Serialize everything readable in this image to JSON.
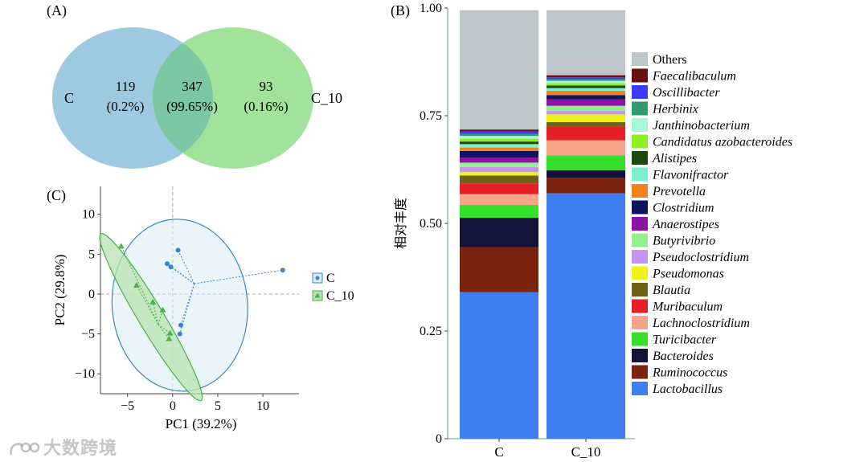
{
  "watermark": "大数跨境",
  "chart_data": [
    {
      "panel": "(A)",
      "type": "venn",
      "sets": [
        {
          "name": "C",
          "unique": "119",
          "unique_pct": "(0.2%)",
          "color": "#9ecae1"
        },
        {
          "name": "C_10",
          "unique": "93",
          "unique_pct": "(0.16%)",
          "color": "#a1e39b"
        }
      ],
      "overlap": {
        "value": "347",
        "pct": "(99.65%)",
        "color": "#7cc7a3"
      }
    },
    {
      "panel": "(B)",
      "type": "bar",
      "stacked": true,
      "ylabel": "相对丰度",
      "ylim": [
        0,
        1.0
      ],
      "yticks": [
        0,
        0.25,
        0.5,
        0.75,
        1.0
      ],
      "ytick_labels": [
        "0",
        "0.25",
        "0.50",
        "0.75",
        "1.00"
      ],
      "categories": [
        "C",
        "C_10"
      ],
      "series": [
        {
          "name": "Lactobacillus",
          "color": "#3d7ff0",
          "values": [
            0.34,
            0.57
          ]
        },
        {
          "name": "Ruminococcus",
          "color": "#7a2410",
          "values": [
            0.105,
            0.035
          ]
        },
        {
          "name": "Bacteroides",
          "color": "#14133a",
          "values": [
            0.068,
            0.018
          ]
        },
        {
          "name": "Turicibacter",
          "color": "#35e02c",
          "values": [
            0.03,
            0.035
          ]
        },
        {
          "name": "Lachnoclostridium",
          "color": "#f6a58a",
          "values": [
            0.025,
            0.035
          ]
        },
        {
          "name": "Muribaculum",
          "color": "#e41f26",
          "values": [
            0.025,
            0.032
          ]
        },
        {
          "name": "Blautia",
          "color": "#6b6216",
          "values": [
            0.018,
            0.01
          ]
        },
        {
          "name": "Pseudomonas",
          "color": "#f2f21a",
          "values": [
            0.008,
            0.018
          ]
        },
        {
          "name": "Pseudoclostridium",
          "color": "#c495e8",
          "values": [
            0.012,
            0.008
          ]
        },
        {
          "name": "Butyrivibrio",
          "color": "#93f08e",
          "values": [
            0.01,
            0.012
          ]
        },
        {
          "name": "Anaerostipes",
          "color": "#8e12a6",
          "values": [
            0.012,
            0.015
          ]
        },
        {
          "name": "Clostridium",
          "color": "#0e1560",
          "values": [
            0.015,
            0.01
          ]
        },
        {
          "name": "Prevotella",
          "color": "#f5821f",
          "values": [
            0.008,
            0.01
          ]
        },
        {
          "name": "Flavonifractor",
          "color": "#7df0cf",
          "values": [
            0.008,
            0.006
          ]
        },
        {
          "name": "Alistipes",
          "color": "#1e4a12",
          "values": [
            0.006,
            0.006
          ]
        },
        {
          "name": "Candidatus azobacteroides",
          "color": "#8ef023",
          "values": [
            0.007,
            0.006
          ]
        },
        {
          "name": "Janthinobacterium",
          "color": "#a8f5d8",
          "values": [
            0.006,
            0.005
          ]
        },
        {
          "name": "Herbinix",
          "color": "#2e9a6e",
          "values": [
            0.005,
            0.004
          ]
        },
        {
          "name": "Oscillibacter",
          "color": "#3b3bff",
          "values": [
            0.005,
            0.004
          ]
        },
        {
          "name": "Faecalibaculum",
          "color": "#6a0e0e",
          "values": [
            0.005,
            0.005
          ]
        },
        {
          "name": "Others",
          "color": "#bec5c8",
          "values": [
            0.277,
            0.151
          ]
        }
      ]
    },
    {
      "panel": "(C)",
      "type": "scatter",
      "xlabel": "PC1 (39.2%)",
      "ylabel": "PC2 (29.8%)",
      "xlim": [
        -8,
        14
      ],
      "ylim": [
        -12.5,
        13.5
      ],
      "xticks": [
        -5,
        0,
        5,
        10
      ],
      "yticks": [
        -10,
        -5,
        0,
        5,
        10
      ],
      "xtick_labels": [
        "−5",
        "0",
        "5",
        "10"
      ],
      "ytick_labels": [
        "−10",
        "−5",
        "0",
        "5",
        "10"
      ],
      "series": [
        {
          "name": "C",
          "marker": "circle",
          "color": "#3a86c8",
          "fill": "#d9ecf6",
          "ellipse": {
            "cx": 0.8,
            "cy": -1.4,
            "rx": 7.5,
            "ry": 10.8,
            "angle": -5
          },
          "centroid": [
            2.4,
            1.3
          ],
          "points": [
            [
              0.6,
              5.5
            ],
            [
              -0.6,
              3.8
            ],
            [
              -0.2,
              3.4
            ],
            [
              12.2,
              3.0
            ],
            [
              0.9,
              -3.9
            ],
            [
              0.8,
              -5.0
            ]
          ]
        },
        {
          "name": "C_10",
          "marker": "triangle",
          "color": "#4db04a",
          "fill": "#b7e3b0",
          "ellipse": {
            "cx": -2.4,
            "cy": -2.9,
            "rx": 1.4,
            "ry": 12.2,
            "angle": -31
          },
          "centroid": [
            -1.6,
            -3.8
          ],
          "points": [
            [
              -5.7,
              6.0
            ],
            [
              -4.0,
              1.1
            ],
            [
              -2.2,
              -1.0
            ],
            [
              -1.1,
              -2.0
            ],
            [
              -0.3,
              -4.9
            ],
            [
              -0.4,
              -5.6
            ]
          ]
        }
      ],
      "legend": [
        "C",
        "C_10"
      ]
    }
  ]
}
